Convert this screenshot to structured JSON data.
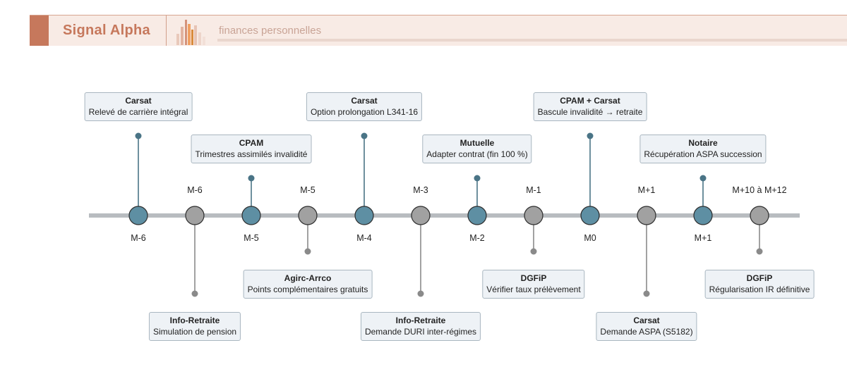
{
  "header": {
    "brand": "Signal Alpha",
    "subtitle": "finances personnelles",
    "accent_color": "#c6785c"
  },
  "timeline": {
    "node_colors": {
      "top": "#5e8fa3",
      "bottom": "#a1a1a1"
    },
    "events": [
      {
        "label": "M-6",
        "org": "Carsat",
        "description": "Relevé de carrière intégral",
        "side": "top",
        "stem": "long"
      },
      {
        "label": "M-6",
        "org": "Info-Retraite",
        "description": "Simulation de pension",
        "side": "bottom",
        "stem": "long"
      },
      {
        "label": "M-5",
        "org": "CPAM",
        "description": "Trimestres assimilés invalidité",
        "side": "top",
        "stem": "short"
      },
      {
        "label": "M-5",
        "org": "Agirc-Arrco",
        "description": "Points complémentaires gratuits",
        "side": "bottom",
        "stem": "short"
      },
      {
        "label": "M-4",
        "org": "Carsat",
        "description": "Option prolongation L341-16",
        "side": "top",
        "stem": "long"
      },
      {
        "label": "M-3",
        "org": "Info-Retraite",
        "description": "Demande DURI inter-régimes",
        "side": "bottom",
        "stem": "long"
      },
      {
        "label": "M-2",
        "org": "Mutuelle",
        "description": "Adapter contrat (fin 100 %)",
        "side": "top",
        "stem": "short"
      },
      {
        "label": "M-1",
        "org": "DGFiP",
        "description": "Vérifier taux prélèvement",
        "side": "bottom",
        "stem": "short"
      },
      {
        "label": "M0",
        "org": "CPAM + Carsat",
        "description": "Bascule invalidité → retraite",
        "side": "top",
        "stem": "long"
      },
      {
        "label": "M+1",
        "org": "Carsat",
        "description": "Demande ASPA (S5182)",
        "side": "bottom",
        "stem": "long"
      },
      {
        "label": "M+1",
        "org": "Notaire",
        "description": "Récupération ASPA succession",
        "side": "top",
        "stem": "short"
      },
      {
        "label": "M+10 à M+12",
        "org": "DGFiP",
        "description": "Régularisation IR définitive",
        "side": "bottom",
        "stem": "short"
      }
    ]
  }
}
